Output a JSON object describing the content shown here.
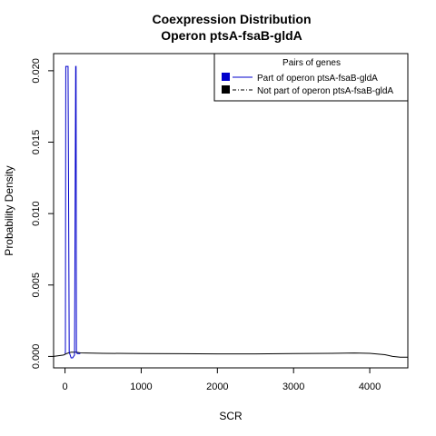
{
  "chart_data": {
    "type": "line",
    "title": "Coexpression Distribution",
    "subtitle": "Operon ptsA-fsaB-gldA",
    "xlabel": "SCR",
    "ylabel": "Probability Density",
    "xlim": [
      -150,
      4500
    ],
    "ylim": [
      -0.0008,
      0.0212
    ],
    "x_ticks": [
      0,
      1000,
      2000,
      3000,
      4000
    ],
    "x_tick_labels": [
      "0",
      "1000",
      "2000",
      "3000",
      "4000"
    ],
    "y_ticks": [
      0.0,
      0.005,
      0.01,
      0.015,
      0.02
    ],
    "y_tick_labels": [
      "0.000",
      "0.005",
      "0.010",
      "0.015",
      "0.020"
    ],
    "legend": {
      "title": "Pairs of genes",
      "placement": "top-right",
      "entries": [
        {
          "label": "Part of operon ptsA-fsaB-gldA",
          "color": "#0000cc",
          "line": "solid"
        },
        {
          "label": "Not part of operon ptsA-fsaB-gldA",
          "color": "#000000",
          "line": "dashed"
        }
      ]
    },
    "series": [
      {
        "name": "Part of operon ptsA-fsaB-gldA",
        "color": "#0000cc",
        "x": [
          0,
          5,
          10,
          25,
          40,
          55,
          80,
          100,
          125,
          140,
          145,
          150,
          160,
          170,
          200
        ],
        "y": [
          0.0002,
          0.0003,
          0.0203,
          0.0203,
          0.0203,
          0.0003,
          -0.0001,
          -0.0001,
          0.0001,
          0.0203,
          0.0203,
          0.0003,
          0.0002,
          0.0002,
          0.0002
        ]
      },
      {
        "name": "Not part of operon ptsA-fsaB-gldA",
        "color": "#000000",
        "x": [
          -150,
          -20,
          20,
          80,
          150,
          200,
          500,
          1000,
          1500,
          2000,
          2500,
          3000,
          3500,
          3800,
          4000,
          4200,
          4300,
          4400,
          4500
        ],
        "y": [
          0.0,
          0.0001,
          0.0002,
          0.0003,
          0.0003,
          0.00025,
          0.00022,
          0.0002,
          0.00019,
          0.00018,
          0.00018,
          0.0002,
          0.00022,
          0.00024,
          0.00022,
          0.00012,
          0.0,
          -5e-05,
          -5e-05
        ]
      }
    ]
  }
}
